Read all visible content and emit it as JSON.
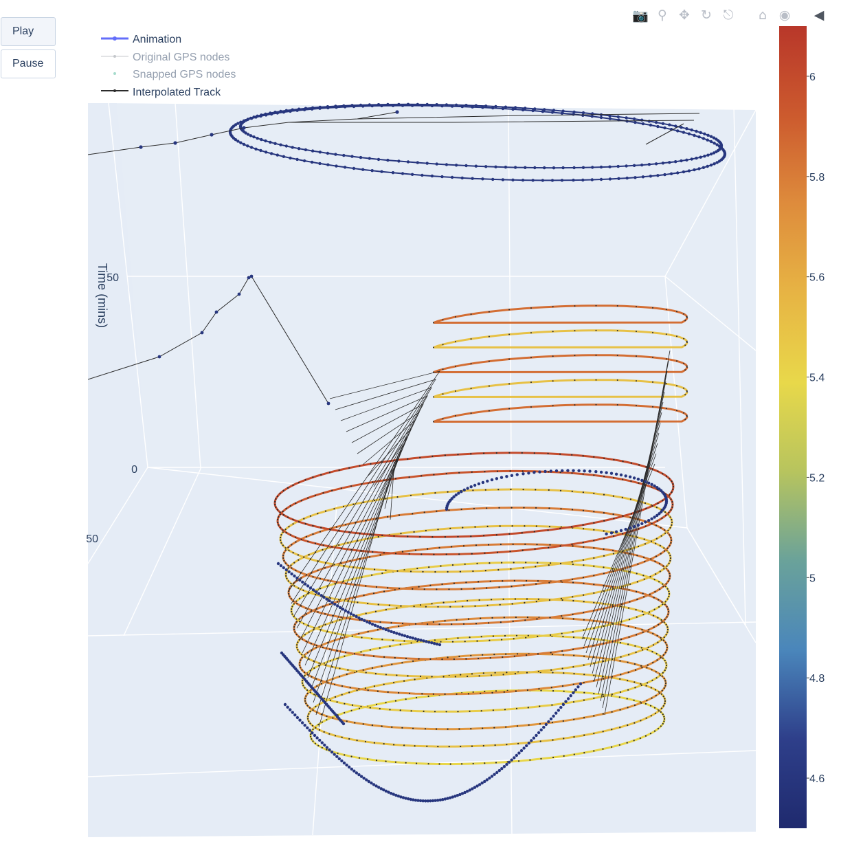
{
  "controls": {
    "play_label": "Play",
    "pause_label": "Pause"
  },
  "modebar": {
    "icons": [
      "camera-icon",
      "zoom-icon",
      "pan-icon",
      "orbit-rotation-icon",
      "turntable-rotation-icon",
      "home-icon",
      "camera-view-icon",
      "plotly-logo-icon"
    ]
  },
  "colors": {
    "scene_bg": "#e5ecf6",
    "grid": "#ffffff",
    "track_line": "#2b2b2b",
    "animation": "#636efa",
    "colorscale": [
      "#1f2a6e",
      "#2e3f8a",
      "#4a86bb",
      "#6aa29a",
      "#b7c45e",
      "#e8d84a",
      "#e7b444",
      "#de8c3c",
      "#cc5a2e",
      "#b8372a"
    ]
  },
  "chart_data": {
    "type": "scatter3d",
    "title": "",
    "axes": {
      "z_label": "Time (mins)",
      "z_ticks": [
        "50",
        "0",
        "-50"
      ],
      "z_tick_display": [
        "50",
        "0",
        "50"
      ]
    },
    "legend": {
      "placement": "top-left",
      "entries": [
        {
          "name": "Animation",
          "style": "line-marker",
          "color": "#636efa",
          "dimmed": false
        },
        {
          "name": "Original GPS nodes",
          "style": "line-marker",
          "color": "#9aa0a6",
          "dimmed": true
        },
        {
          "name": "Snapped GPS nodes",
          "style": "marker",
          "color": "#6aa29a",
          "dimmed": true
        },
        {
          "name": "Interpolated Track",
          "style": "line-marker",
          "color": "#2b2b2b",
          "dimmed": false
        }
      ]
    },
    "colorbar": {
      "min": 4.5,
      "max": 6.1,
      "ticks": [
        4.6,
        4.8,
        5,
        5.2,
        5.4,
        5.6,
        5.8,
        6
      ],
      "tick_labels": [
        "4.6",
        "4.8",
        "5",
        "5.2",
        "5.4",
        "5.6",
        "5.8",
        "6"
      ]
    },
    "series": [
      {
        "name": "upper-oval",
        "color_value": 4.6,
        "laps": 2
      },
      {
        "name": "lower-stack",
        "laps": 14,
        "lap_color_values": [
          6.0,
          5.95,
          5.5,
          5.8,
          5.5,
          5.8,
          5.45,
          5.8,
          5.5,
          5.75,
          5.45,
          5.7,
          5.5,
          5.4
        ]
      },
      {
        "name": "bottom-spiral",
        "color_value": 4.6
      }
    ]
  }
}
